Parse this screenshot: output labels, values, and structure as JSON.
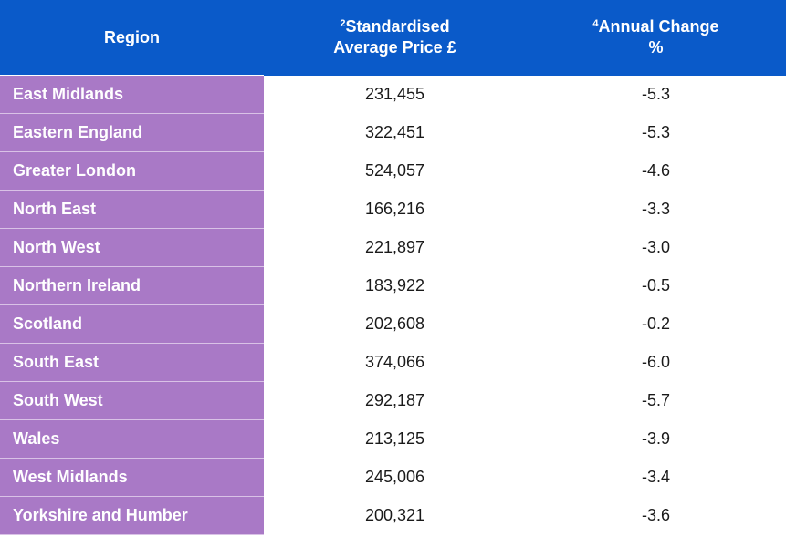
{
  "table": {
    "headers": {
      "region": "Region",
      "price_sup": "2",
      "price_line1": "Standardised",
      "price_line2": "Average Price £",
      "change_sup": "4",
      "change_line1": "Annual Change",
      "change_line2": "%"
    },
    "rows": [
      {
        "region": "East Midlands",
        "price": "231,455",
        "change": "-5.3"
      },
      {
        "region": "Eastern England",
        "price": "322,451",
        "change": "-5.3"
      },
      {
        "region": "Greater London",
        "price": "524,057",
        "change": "-4.6"
      },
      {
        "region": "North East",
        "price": "166,216",
        "change": "-3.3"
      },
      {
        "region": "North West",
        "price": "221,897",
        "change": "-3.0"
      },
      {
        "region": "Northern Ireland",
        "price": "183,922",
        "change": "-0.5"
      },
      {
        "region": "Scotland",
        "price": "202,608",
        "change": "-0.2"
      },
      {
        "region": "South East",
        "price": "374,066",
        "change": "-6.0"
      },
      {
        "region": "South West",
        "price": "292,187",
        "change": "-5.7"
      },
      {
        "region": "Wales",
        "price": "213,125",
        "change": "-3.9"
      },
      {
        "region": "West Midlands",
        "price": "245,006",
        "change": "-3.4"
      },
      {
        "region": "Yorkshire and Humber",
        "price": "200,321",
        "change": "-3.6"
      }
    ]
  },
  "colors": {
    "header_bg": "#0a5ac9",
    "region_bg": "#a979c6",
    "header_text": "#ffffff",
    "body_text": "#1a1a1a"
  }
}
